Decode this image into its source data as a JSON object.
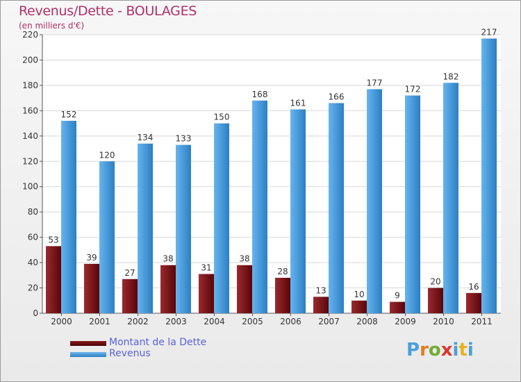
{
  "chart_data": {
    "type": "bar",
    "title": "Revenus/Dette - BOULAGES",
    "subtitle": "(en milliers d'€)",
    "xlabel": "",
    "ylabel": "",
    "ylim": [
      0,
      220
    ],
    "y_ticks": [
      0,
      20,
      40,
      60,
      80,
      100,
      120,
      140,
      160,
      180,
      200,
      220
    ],
    "grid": true,
    "categories": [
      "2000",
      "2001",
      "2002",
      "2003",
      "2004",
      "2005",
      "2006",
      "2007",
      "2008",
      "2009",
      "2010",
      "2011"
    ],
    "series": [
      {
        "name": "Montant de la Dette",
        "color": "#7a0e12",
        "values": [
          53,
          39,
          27,
          38,
          31,
          38,
          28,
          13,
          10,
          9,
          20,
          16
        ]
      },
      {
        "name": "Revenus",
        "color": "#4a9fe0",
        "values": [
          152,
          120,
          134,
          133,
          150,
          168,
          161,
          166,
          177,
          172,
          182,
          217
        ]
      }
    ],
    "legend_position": "bottom-left"
  },
  "logo": {
    "letters": [
      "P",
      "r",
      "o",
      "x",
      "i",
      "t",
      "i"
    ],
    "colors": [
      "#4aa0dc",
      "#e47b1a",
      "#6fae2f",
      "#e0342f",
      "#4aa0dc",
      "#e8b21e",
      "#4aa0dc"
    ]
  }
}
